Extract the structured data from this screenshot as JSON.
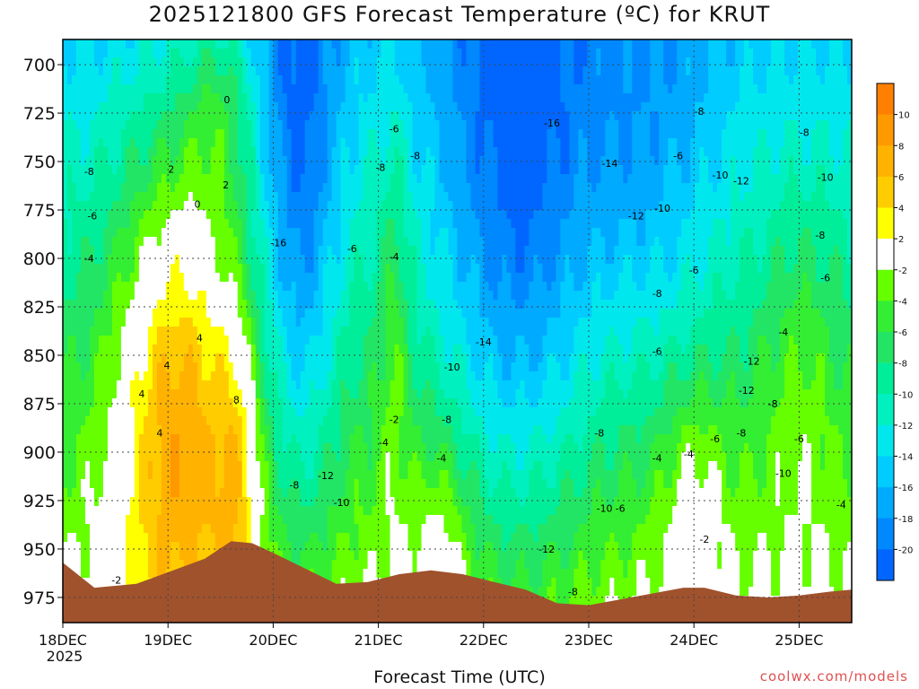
{
  "chart_data": {
    "type": "heatmap",
    "title": "2025121800 GFS Forecast Temperature (ºC) for KRUT",
    "xlabel": "Forecast Time (UTC)",
    "ylabel": "",
    "credit": "coolwx.com/models",
    "x_ticks": [
      {
        "day": 0,
        "label": "18DEC",
        "sub": "2025"
      },
      {
        "day": 1,
        "label": "19DEC",
        "sub": ""
      },
      {
        "day": 2,
        "label": "20DEC",
        "sub": ""
      },
      {
        "day": 3,
        "label": "21DEC",
        "sub": ""
      },
      {
        "day": 4,
        "label": "22DEC",
        "sub": ""
      },
      {
        "day": 5,
        "label": "23DEC",
        "sub": ""
      },
      {
        "day": 6,
        "label": "24DEC",
        "sub": ""
      },
      {
        "day": 7,
        "label": "25DEC",
        "sub": ""
      }
    ],
    "xlim": [
      0,
      7.5
    ],
    "y_ticks": [
      700,
      725,
      750,
      775,
      800,
      825,
      850,
      875,
      900,
      925,
      950,
      975
    ],
    "ylim": [
      988,
      687
    ],
    "grid": true,
    "colorbar": {
      "bins": [
        {
          "lo": 10,
          "hi": 12,
          "color": "#ff7f00"
        },
        {
          "lo": 8,
          "hi": 10,
          "color": "#ff9900"
        },
        {
          "lo": 6,
          "hi": 8,
          "color": "#ffb200"
        },
        {
          "lo": 4,
          "hi": 6,
          "color": "#ffcc00"
        },
        {
          "lo": 2,
          "hi": 4,
          "color": "#ffff00"
        },
        {
          "lo": -2,
          "hi": 2,
          "color": "#ffffff"
        },
        {
          "lo": -4,
          "hi": -2,
          "color": "#66ff00"
        },
        {
          "lo": -6,
          "hi": -4,
          "color": "#33ee33"
        },
        {
          "lo": -8,
          "hi": -6,
          "color": "#22e566"
        },
        {
          "lo": -10,
          "hi": -8,
          "color": "#00ee99"
        },
        {
          "lo": -12,
          "hi": -10,
          "color": "#00f0c0"
        },
        {
          "lo": -14,
          "hi": -12,
          "color": "#00e8ee"
        },
        {
          "lo": -16,
          "hi": -14,
          "color": "#00ccff"
        },
        {
          "lo": -18,
          "hi": -16,
          "color": "#00aaff"
        },
        {
          "lo": -20,
          "hi": -18,
          "color": "#0088ff"
        },
        {
          "lo": -22,
          "hi": -20,
          "color": "#0066ff"
        }
      ],
      "labels": [
        "10",
        "8",
        "6",
        "4",
        "2",
        "-2",
        "-4",
        "-6",
        "-8",
        "-10",
        "-12",
        "-14",
        "-16",
        "-18",
        "-20"
      ]
    },
    "terrain_color": "#a0522d",
    "surface_pressure": [
      [
        0.0,
        957
      ],
      [
        0.3,
        970
      ],
      [
        0.7,
        968
      ],
      [
        1.0,
        962
      ],
      [
        1.35,
        955
      ],
      [
        1.6,
        946
      ],
      [
        1.8,
        947
      ],
      [
        2.0,
        952
      ],
      [
        2.3,
        960
      ],
      [
        2.6,
        968
      ],
      [
        2.9,
        967
      ],
      [
        3.2,
        963
      ],
      [
        3.5,
        961
      ],
      [
        3.8,
        963
      ],
      [
        4.1,
        967
      ],
      [
        4.4,
        971
      ],
      [
        4.7,
        978
      ],
      [
        5.0,
        979
      ],
      [
        5.3,
        976
      ],
      [
        5.6,
        973
      ],
      [
        5.9,
        970
      ],
      [
        6.1,
        970
      ],
      [
        6.4,
        974
      ],
      [
        6.7,
        975
      ],
      [
        7.0,
        974
      ],
      [
        7.3,
        972
      ],
      [
        7.5,
        971
      ]
    ],
    "contour_labels": [
      {
        "day": 0.25,
        "p": 755,
        "text": "-8"
      },
      {
        "day": 0.28,
        "p": 778,
        "text": "-6"
      },
      {
        "day": 0.25,
        "p": 800,
        "text": "-4"
      },
      {
        "day": 1.03,
        "p": 754,
        "text": "2"
      },
      {
        "day": 1.28,
        "p": 772,
        "text": "0"
      },
      {
        "day": 1.56,
        "p": 718,
        "text": "0"
      },
      {
        "day": 1.55,
        "p": 762,
        "text": "2"
      },
      {
        "day": 1.3,
        "p": 841,
        "text": "4"
      },
      {
        "day": 0.99,
        "p": 855,
        "text": "4"
      },
      {
        "day": 0.75,
        "p": 870,
        "text": "4"
      },
      {
        "day": 0.92,
        "p": 890,
        "text": "4"
      },
      {
        "day": 1.65,
        "p": 873,
        "text": "8"
      },
      {
        "day": 0.51,
        "p": 966,
        "text": "-2"
      },
      {
        "day": 2.05,
        "p": 792,
        "text": "-16"
      },
      {
        "day": 2.75,
        "p": 795,
        "text": "-6"
      },
      {
        "day": 3.02,
        "p": 753,
        "text": "-8"
      },
      {
        "day": 3.15,
        "p": 799,
        "text": "-4"
      },
      {
        "day": 3.15,
        "p": 883,
        "text": "-2"
      },
      {
        "day": 3.05,
        "p": 895,
        "text": "-4"
      },
      {
        "day": 3.15,
        "p": 733,
        "text": "-6"
      },
      {
        "day": 3.35,
        "p": 747,
        "text": "-8"
      },
      {
        "day": 2.2,
        "p": 917,
        "text": "-8"
      },
      {
        "day": 2.5,
        "p": 912,
        "text": "-12"
      },
      {
        "day": 2.65,
        "p": 926,
        "text": "-10"
      },
      {
        "day": 3.6,
        "p": 903,
        "text": "-4"
      },
      {
        "day": 3.7,
        "p": 856,
        "text": "-10"
      },
      {
        "day": 3.65,
        "p": 883,
        "text": "-8"
      },
      {
        "day": 4.0,
        "p": 843,
        "text": "-14"
      },
      {
        "day": 4.65,
        "p": 730,
        "text": "-16"
      },
      {
        "day": 5.2,
        "p": 751,
        "text": "-14"
      },
      {
        "day": 5.45,
        "p": 778,
        "text": "-12"
      },
      {
        "day": 5.7,
        "p": 774,
        "text": "-10"
      },
      {
        "day": 5.85,
        "p": 747,
        "text": "-6"
      },
      {
        "day": 6.05,
        "p": 724,
        "text": "-8"
      },
      {
        "day": 6.25,
        "p": 757,
        "text": "-10"
      },
      {
        "day": 6.45,
        "p": 760,
        "text": "-12"
      },
      {
        "day": 7.25,
        "p": 758,
        "text": "-10"
      },
      {
        "day": 7.05,
        "p": 735,
        "text": "-8"
      },
      {
        "day": 7.2,
        "p": 788,
        "text": "-8"
      },
      {
        "day": 7.25,
        "p": 810,
        "text": "-6"
      },
      {
        "day": 5.65,
        "p": 818,
        "text": "-8"
      },
      {
        "day": 6.0,
        "p": 806,
        "text": "-6"
      },
      {
        "day": 6.85,
        "p": 838,
        "text": "-4"
      },
      {
        "day": 5.65,
        "p": 848,
        "text": "-6"
      },
      {
        "day": 6.55,
        "p": 853,
        "text": "-12"
      },
      {
        "day": 6.5,
        "p": 868,
        "text": "-12"
      },
      {
        "day": 6.75,
        "p": 875,
        "text": "-8"
      },
      {
        "day": 6.2,
        "p": 893,
        "text": "-6"
      },
      {
        "day": 6.45,
        "p": 890,
        "text": "-8"
      },
      {
        "day": 7.0,
        "p": 893,
        "text": "-6"
      },
      {
        "day": 6.85,
        "p": 911,
        "text": "-10"
      },
      {
        "day": 5.65,
        "p": 903,
        "text": "-4"
      },
      {
        "day": 5.95,
        "p": 901,
        "text": "-4"
      },
      {
        "day": 7.4,
        "p": 927,
        "text": "-4"
      },
      {
        "day": 5.1,
        "p": 890,
        "text": "-8"
      },
      {
        "day": 5.15,
        "p": 929,
        "text": "-10"
      },
      {
        "day": 5.3,
        "p": 929,
        "text": "-6"
      },
      {
        "day": 4.6,
        "p": 950,
        "text": "-12"
      },
      {
        "day": 4.85,
        "p": 972,
        "text": "-8"
      },
      {
        "day": 6.1,
        "p": 945,
        "text": "-2"
      }
    ]
  }
}
